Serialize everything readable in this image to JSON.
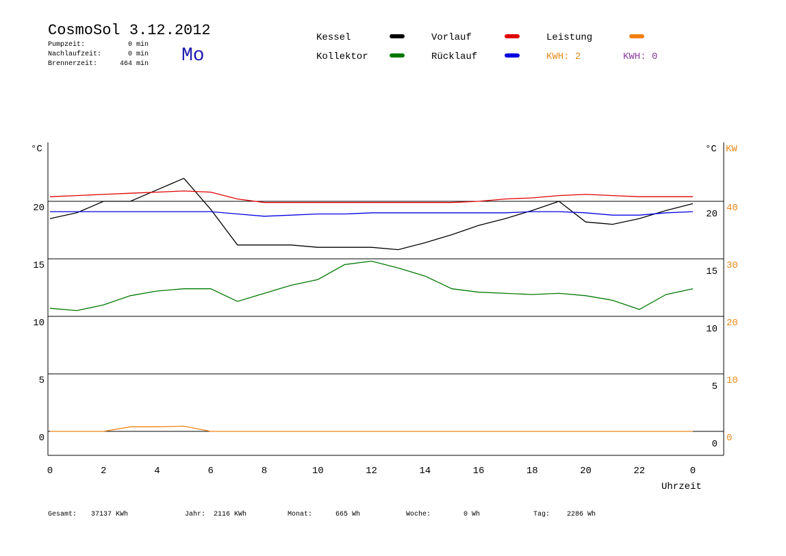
{
  "chart_data": {
    "type": "line",
    "title": "CosmoSol 3.12.2012",
    "info": [
      [
        "Pumpzeit:",
        "0 min"
      ],
      [
        "Nachlaufzeit:",
        "0 min"
      ],
      [
        "Brennerzeit:",
        "464 min"
      ]
    ],
    "day": "Mo",
    "energy_labels": [
      {
        "text": "KWH: 2",
        "color": "#e88a1a"
      },
      {
        "text": "KWH: 0",
        "color": "#8b3a9b"
      }
    ],
    "ylabel": "°C",
    "y2label": "KW",
    "xlabel": "Uhrzeit",
    "x": [
      0,
      1,
      2,
      3,
      4,
      5,
      6,
      7,
      8,
      9,
      10,
      11,
      12,
      13,
      14,
      15,
      16,
      17,
      18,
      19,
      20,
      21,
      22,
      23,
      24
    ],
    "xlim": [
      0,
      24
    ],
    "xticks": [
      0,
      2,
      4,
      6,
      8,
      10,
      12,
      14,
      16,
      18,
      20,
      22,
      {
        "value": 24,
        "label": "0"
      }
    ],
    "ylim": [
      -2,
      25
    ],
    "yticks": [
      0,
      5,
      10,
      15,
      20
    ],
    "y2lim": [
      -4,
      50
    ],
    "y2ticks": [
      0,
      10,
      20,
      30,
      40
    ],
    "grid": true,
    "series": [
      {
        "name": "Kessel",
        "color": "#000000",
        "values": [
          18.5,
          19.0,
          20.0,
          20.0,
          21.0,
          22.0,
          19.3,
          16.2,
          16.2,
          16.2,
          16.0,
          16.0,
          16.0,
          15.8,
          16.4,
          17.1,
          17.9,
          18.5,
          19.2,
          20.0,
          18.2,
          18.0,
          18.5,
          19.2,
          19.8
        ]
      },
      {
        "name": "Vorlauf",
        "color": "#e00000",
        "values": [
          20.4,
          20.5,
          20.6,
          20.7,
          20.8,
          20.9,
          20.8,
          20.2,
          19.9,
          19.9,
          19.9,
          19.9,
          19.9,
          19.9,
          19.9,
          19.9,
          20.0,
          20.2,
          20.3,
          20.5,
          20.6,
          20.5,
          20.4,
          20.4,
          20.4
        ]
      },
      {
        "name": "Leistung",
        "color": "#f08010",
        "axis": "y2",
        "values": [
          0,
          0,
          0,
          0.8,
          0.8,
          0.9,
          0,
          0,
          0,
          0,
          0,
          0,
          0,
          0,
          0,
          0,
          0,
          0,
          0,
          0,
          0,
          0,
          0,
          0,
          0
        ]
      },
      {
        "name": "Kollektor",
        "color": "#007800",
        "values": [
          10.7,
          10.5,
          11.0,
          11.8,
          12.2,
          12.4,
          12.4,
          11.3,
          12.0,
          12.7,
          13.2,
          14.5,
          14.8,
          14.2,
          13.5,
          12.4,
          12.1,
          12.0,
          11.9,
          12.0,
          11.8,
          11.4,
          10.6,
          11.9,
          12.4
        ]
      },
      {
        "name": "Rücklauf",
        "color": "#0000e0",
        "values": [
          19.1,
          19.1,
          19.1,
          19.1,
          19.1,
          19.1,
          19.1,
          18.9,
          18.7,
          18.8,
          18.9,
          18.9,
          19.0,
          19.0,
          19.0,
          19.0,
          19.0,
          19.0,
          19.1,
          19.1,
          19.0,
          18.8,
          18.8,
          19.0,
          19.1
        ]
      }
    ],
    "footer": [
      [
        "Gesamt:",
        "37137 KWh"
      ],
      [
        "Jahr:",
        "2116 KWh"
      ],
      [
        "Monat:",
        "665 Wh"
      ],
      [
        "Woche:",
        "0 Wh"
      ],
      [
        "Tag:",
        "2286 Wh"
      ]
    ]
  }
}
